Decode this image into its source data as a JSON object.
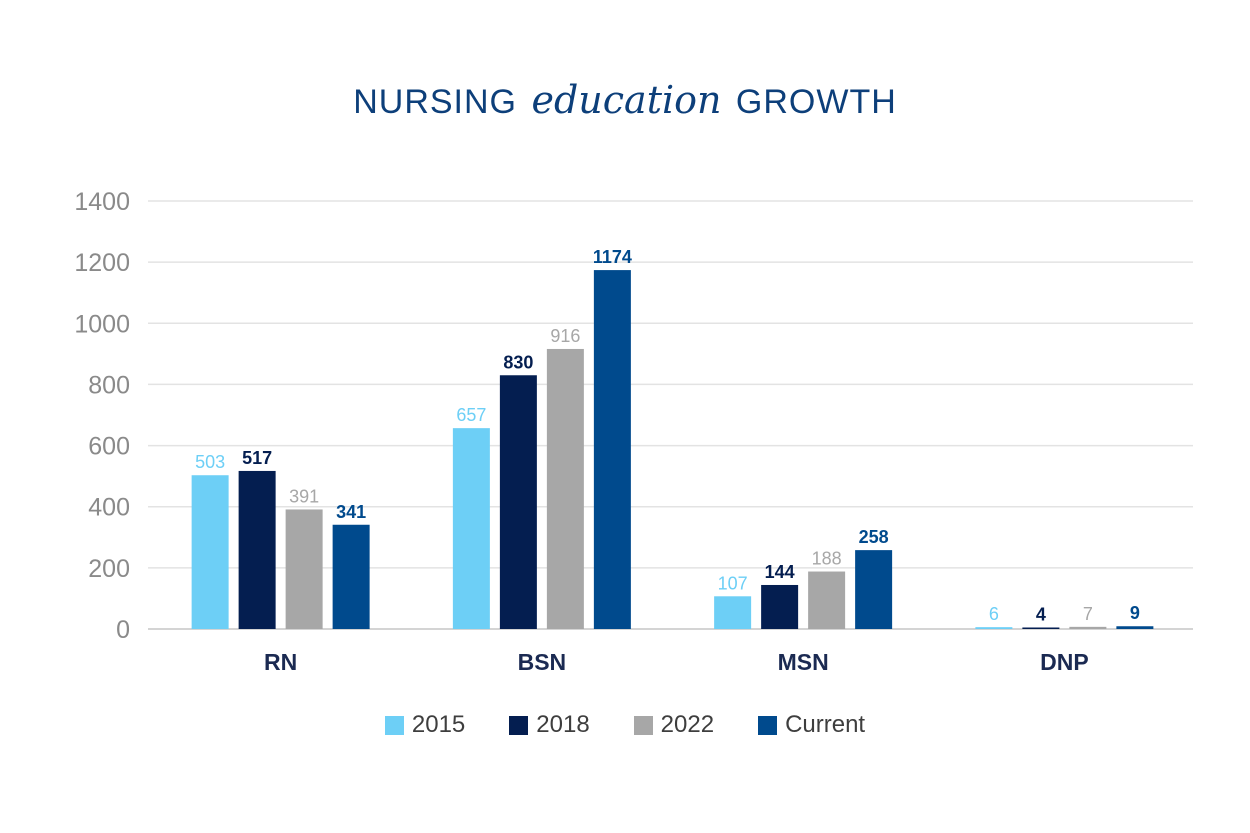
{
  "title": {
    "part1": "NURSING",
    "part2": "education",
    "part3": "GROWTH"
  },
  "colors": {
    "2015": "#6dcff6",
    "2018": "#041e50",
    "2022": "#a7a7a7",
    "Current": "#004a8d",
    "title": "#0d3f7a",
    "grid": "#e3e3e3",
    "axis_text": "#8a8a8a",
    "category_text": "#1b2a52"
  },
  "chart_data": {
    "type": "bar",
    "title": "NURSING education GROWTH",
    "categories": [
      "RN",
      "BSN",
      "MSN",
      "DNP"
    ],
    "series": [
      {
        "name": "2015",
        "values": [
          503,
          657,
          107,
          6
        ],
        "color": "#6dcff6",
        "label_color": "#6dcff6",
        "label_weight": "normal"
      },
      {
        "name": "2018",
        "values": [
          517,
          830,
          144,
          4
        ],
        "color": "#041e50",
        "label_color": "#041e50",
        "label_weight": "bold"
      },
      {
        "name": "2022",
        "values": [
          391,
          916,
          188,
          7
        ],
        "color": "#a7a7a7",
        "label_color": "#a7a7a7",
        "label_weight": "normal"
      },
      {
        "name": "Current",
        "values": [
          341,
          1174,
          258,
          9
        ],
        "color": "#004a8d",
        "label_color": "#004a8d",
        "label_weight": "bold"
      }
    ],
    "yticks": [
      "0",
      "200",
      "400",
      "600",
      "800",
      "1000",
      "1200",
      "1400"
    ],
    "ylim": [
      0,
      1400
    ],
    "grid": true,
    "legend_position": "bottom",
    "xlabel": "",
    "ylabel": ""
  }
}
